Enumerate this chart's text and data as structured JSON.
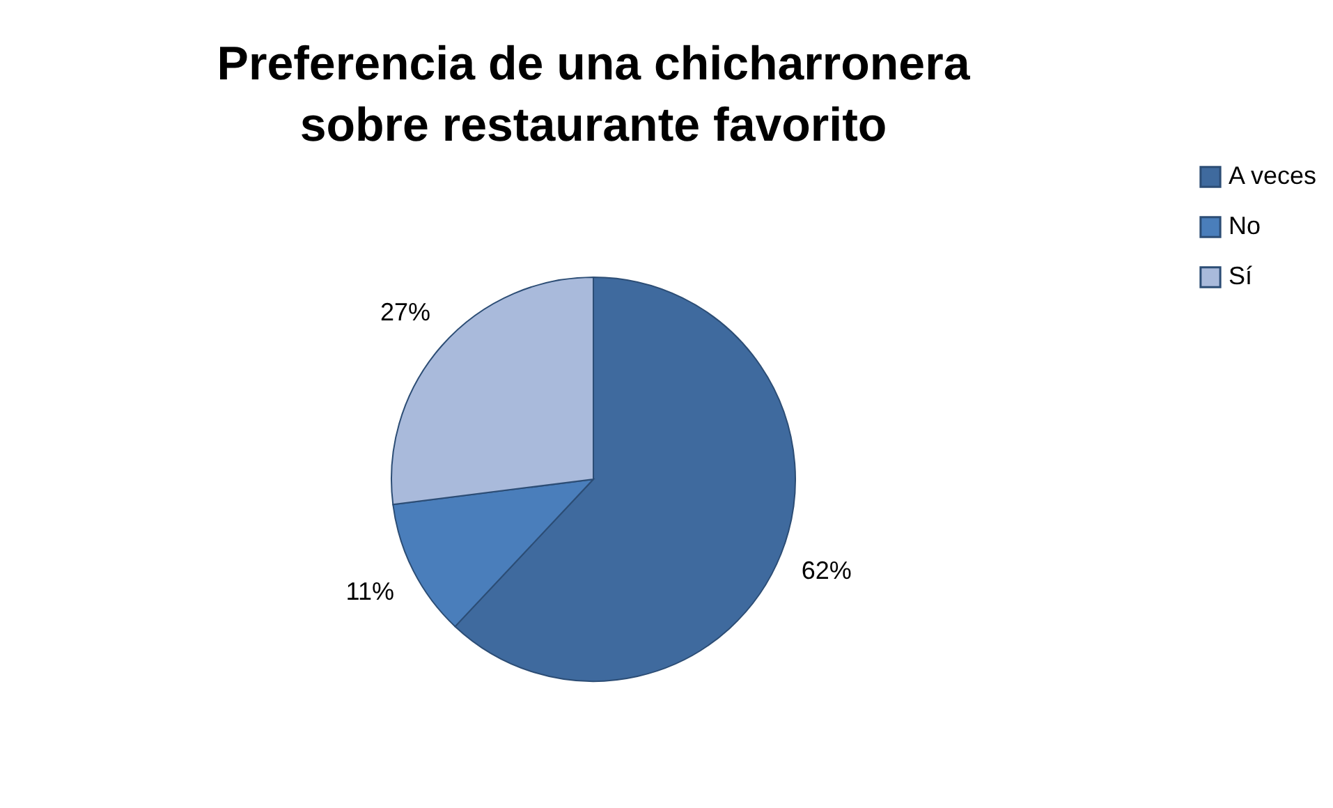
{
  "chart_data": {
    "type": "pie",
    "title": "Preferencia de una chicharronera\nsobre restaurante favorito",
    "categories": [
      "A veces",
      "No",
      "Sí"
    ],
    "values": [
      62,
      11,
      27
    ],
    "colors": [
      "#3f6a9e",
      "#4a7ebb",
      "#a9badb"
    ],
    "value_labels": [
      "62%",
      "11%",
      "27%"
    ],
    "legend": "right"
  }
}
